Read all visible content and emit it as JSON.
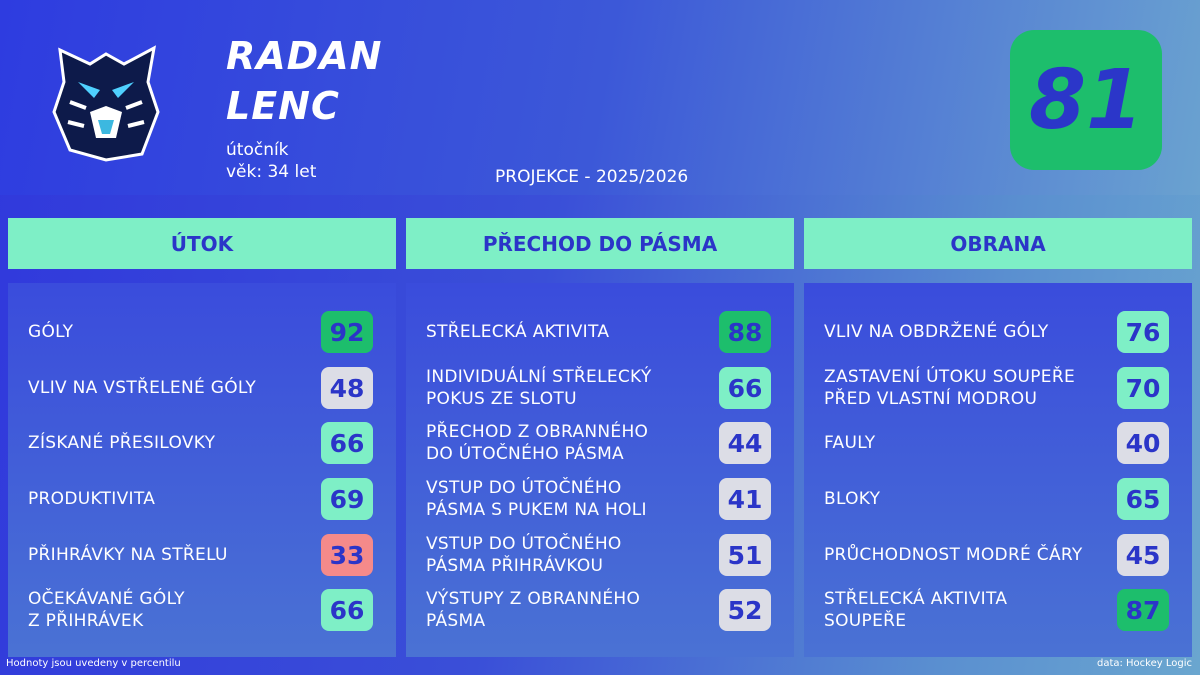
{
  "player": {
    "name_lines": [
      "RADAN",
      "LENC"
    ],
    "position": "útočník",
    "age": "věk: 34 let",
    "projection": "PROJEKCE - 2025/2026",
    "overall": 81
  },
  "sections": [
    {
      "title": "ÚTOK",
      "items": [
        {
          "label": [
            "GÓLY"
          ],
          "value": 92
        },
        {
          "label": [
            "VLIV NA VSTŘELENÉ GÓLY"
          ],
          "value": 48
        },
        {
          "label": [
            "ZÍSKANÉ PŘESILOVKY"
          ],
          "value": 66
        },
        {
          "label": [
            "PRODUKTIVITA"
          ],
          "value": 69
        },
        {
          "label": [
            "PŘIHRÁVKY NA STŘELU"
          ],
          "value": 33
        },
        {
          "label": [
            "OČEKÁVANÉ GÓLY",
            "Z PŘIHRÁVEK"
          ],
          "value": 66
        }
      ]
    },
    {
      "title": "PŘECHOD DO PÁSMA",
      "items": [
        {
          "label": [
            "STŘELECKÁ AKTIVITA"
          ],
          "value": 88
        },
        {
          "label": [
            "INDIVIDUÁLNÍ STŘELECKÝ",
            "POKUS ZE SLOTU"
          ],
          "value": 66
        },
        {
          "label": [
            "PŘECHOD Z OBRANNÉHO",
            "DO ÚTOČNÉHO PÁSMA"
          ],
          "value": 44
        },
        {
          "label": [
            "VSTUP DO ÚTOČNÉHO",
            "PÁSMA S PUKEM NA HOLI"
          ],
          "value": 41
        },
        {
          "label": [
            "VSTUP DO ÚTOČNÉHO",
            "PÁSMA PŘIHRÁVKOU"
          ],
          "value": 51
        },
        {
          "label": [
            "VÝSTUPY Z OBRANNÉHO",
            "PÁSMA"
          ],
          "value": 52
        }
      ]
    },
    {
      "title": "OBRANA",
      "items": [
        {
          "label": [
            "VLIV NA OBDRŽENÉ GÓLY"
          ],
          "value": 76
        },
        {
          "label": [
            "ZASTAVENÍ ÚTOKU SOUPEŘE",
            "PŘED VLASTNÍ MODROU"
          ],
          "value": 70
        },
        {
          "label": [
            "FAULY"
          ],
          "value": 40
        },
        {
          "label": [
            "BLOKY"
          ],
          "value": 65
        },
        {
          "label": [
            "PRŮCHODNOST MODRÉ ČÁRY"
          ],
          "value": 45
        },
        {
          "label": [
            "STŘELECKÁ AKTIVITA",
            "SOUPEŘE"
          ],
          "value": 87
        }
      ]
    }
  ],
  "footer": {
    "note": "Hodnoty jsou uvedeny v percentilu",
    "source": "data: Hockey Logic"
  }
}
